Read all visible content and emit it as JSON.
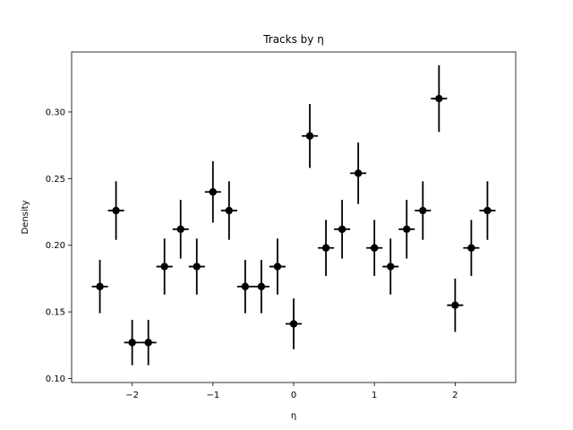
{
  "chart_data": {
    "type": "scatter",
    "title": "Tracks by η",
    "xlabel": "η",
    "ylabel": "Density",
    "xlim": [
      -2.75,
      2.75
    ],
    "ylim": [
      0.097,
      0.345
    ],
    "x_ticks": [
      -2,
      -1,
      0,
      1,
      2
    ],
    "x_tick_labels": [
      "−2",
      "−1",
      "0",
      "1",
      "2"
    ],
    "y_ticks": [
      0.1,
      0.15,
      0.2,
      0.25,
      0.3
    ],
    "y_tick_labels": [
      "0.10",
      "0.15",
      "0.20",
      "0.25",
      "0.30"
    ],
    "grid": false,
    "marker_color": "#000000",
    "x_error": 0.1,
    "series": [
      {
        "x": [
          -2.4,
          -2.2,
          -2.0,
          -1.8,
          -1.6,
          -1.4,
          -1.2,
          -1.0,
          -0.8,
          -0.6,
          -0.4,
          -0.2,
          0.0,
          0.2,
          0.4,
          0.6,
          0.8,
          1.0,
          1.2,
          1.4,
          1.6,
          1.8,
          2.0,
          2.2,
          2.4
        ],
        "y": [
          0.169,
          0.226,
          0.127,
          0.127,
          0.184,
          0.212,
          0.184,
          0.24,
          0.226,
          0.169,
          0.169,
          0.184,
          0.141,
          0.282,
          0.198,
          0.212,
          0.254,
          0.198,
          0.184,
          0.212,
          0.226,
          0.31,
          0.155,
          0.198,
          0.226
        ],
        "y_err": [
          0.02,
          0.022,
          0.017,
          0.017,
          0.021,
          0.022,
          0.021,
          0.023,
          0.022,
          0.02,
          0.02,
          0.021,
          0.019,
          0.024,
          0.021,
          0.022,
          0.023,
          0.021,
          0.021,
          0.022,
          0.022,
          0.025,
          0.02,
          0.021,
          0.022
        ]
      }
    ]
  }
}
